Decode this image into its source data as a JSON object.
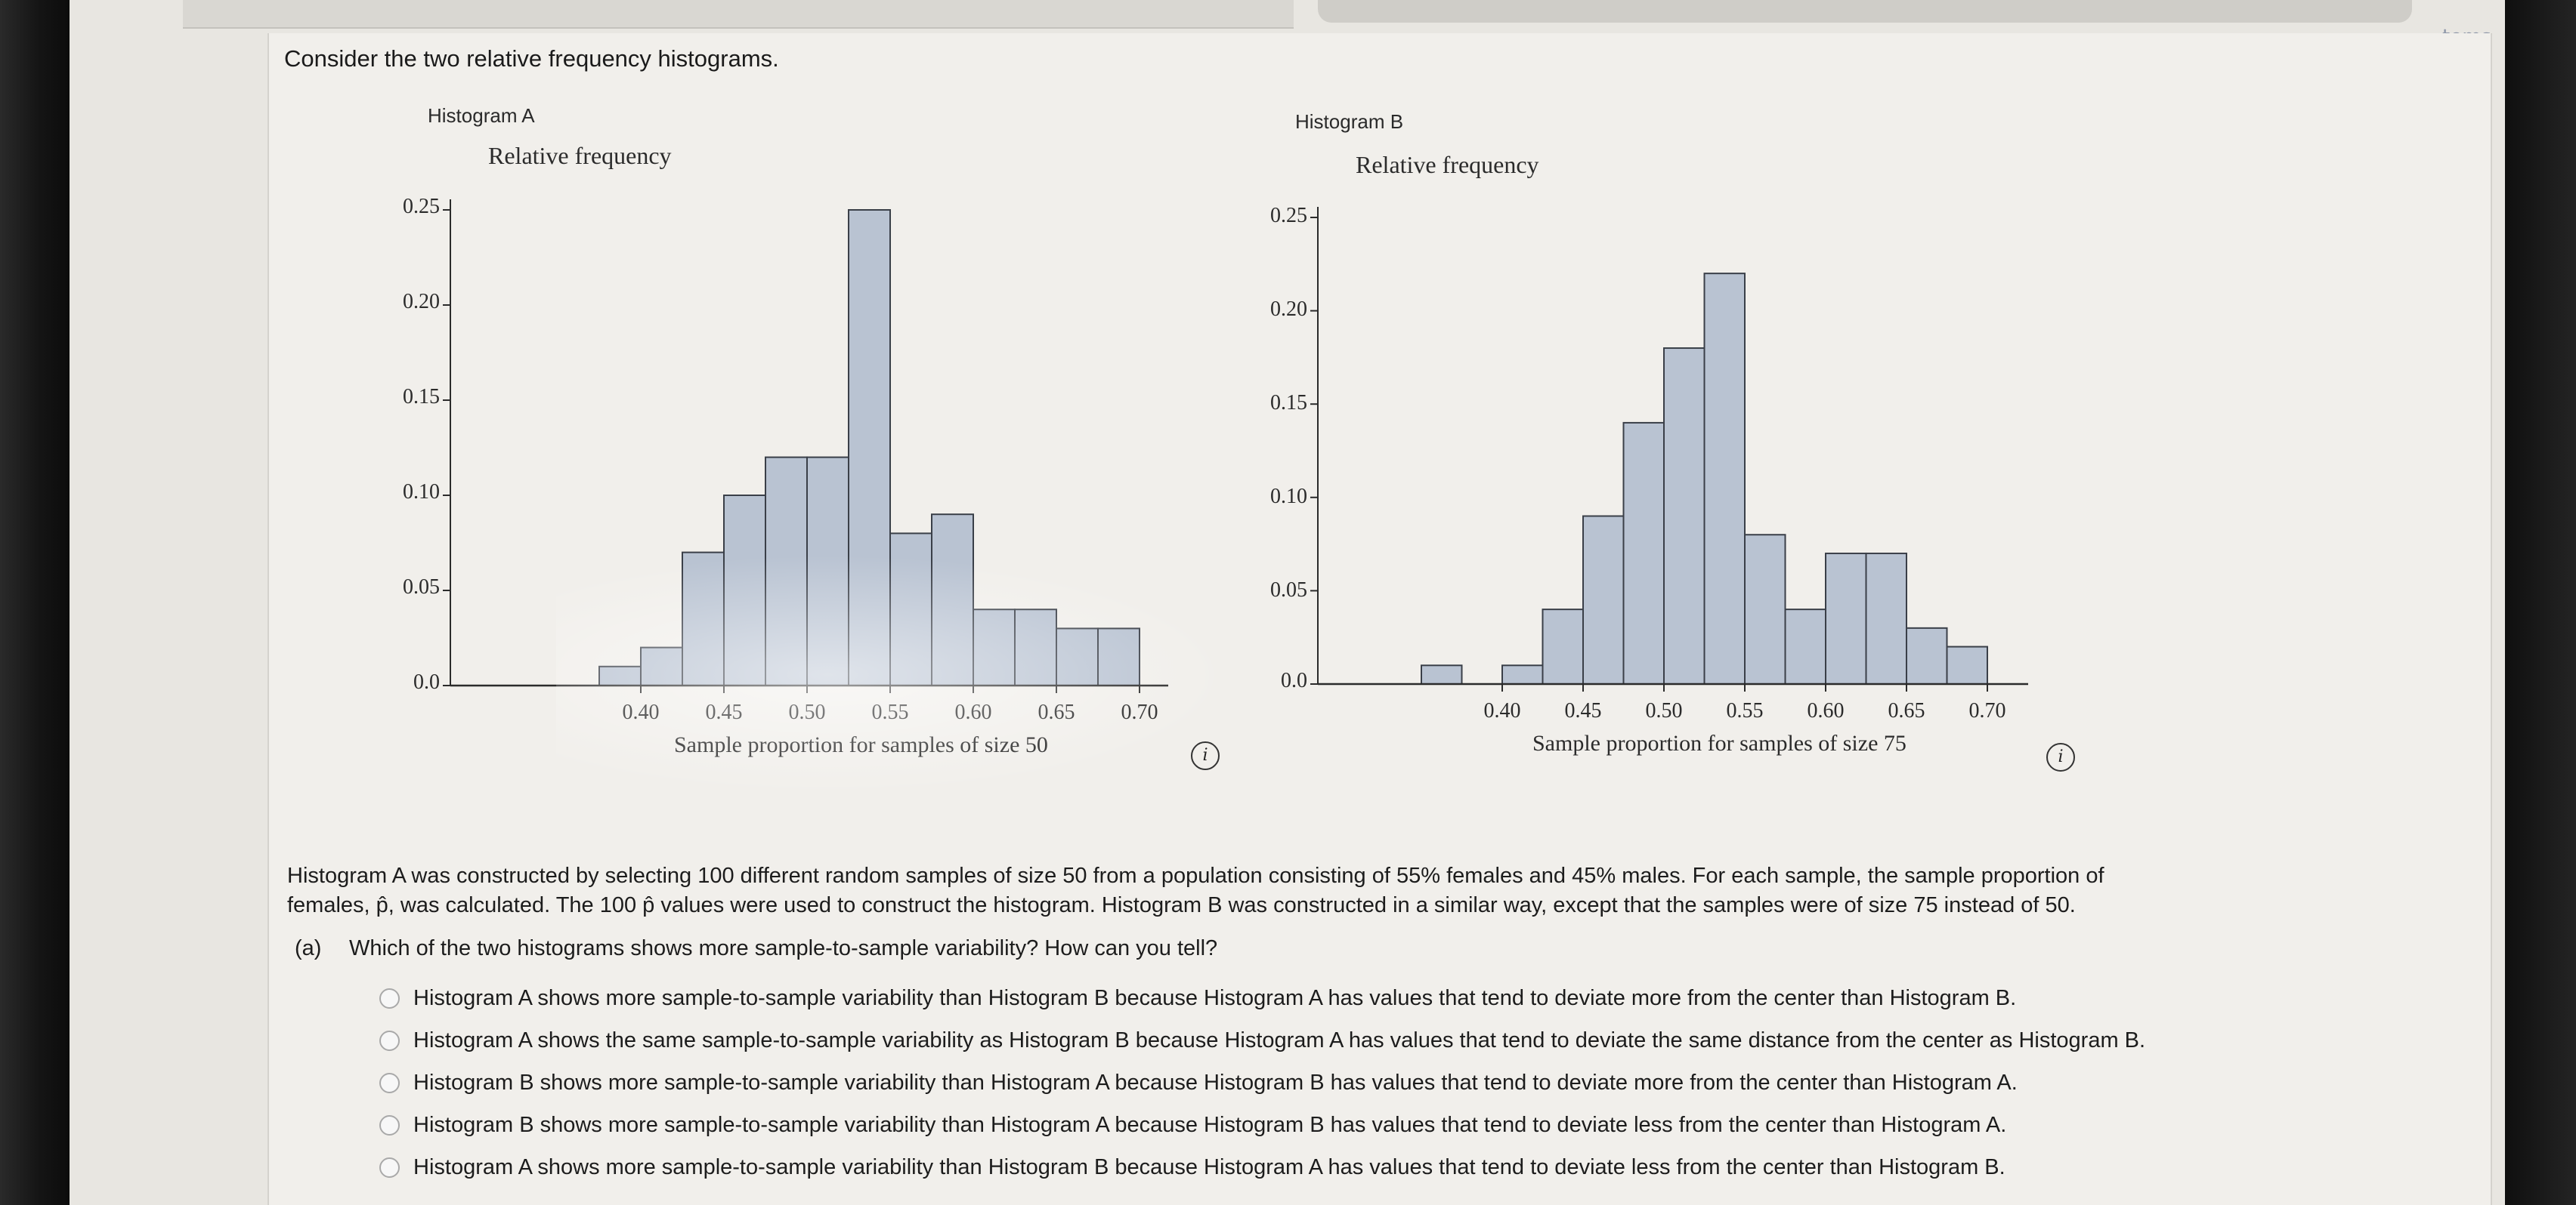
{
  "intro_text": "Consider the two relative frequency histograms.",
  "histograms": [
    {
      "panel_label": "Histogram A",
      "y_title": "Relative frequency",
      "x_title": "Sample proportion for samples of size 50",
      "y_ticks": [
        "0.25",
        "0.20",
        "0.15",
        "0.10",
        "0.05",
        "0.0"
      ],
      "x_ticks": [
        "0.40",
        "0.45",
        "0.50",
        "0.55",
        "0.60",
        "0.65",
        "0.70"
      ]
    },
    {
      "panel_label": "Histogram B",
      "y_title": "Relative frequency",
      "x_title": "Sample proportion for samples of size 75",
      "y_ticks": [
        "0.25",
        "0.20",
        "0.15",
        "0.10",
        "0.05",
        "0.0"
      ],
      "x_ticks": [
        "0.40",
        "0.45",
        "0.50",
        "0.55",
        "0.60",
        "0.65",
        "0.70"
      ]
    }
  ],
  "chart_data": [
    {
      "type": "bar",
      "title": "Histogram A",
      "xlabel": "Sample proportion for samples of size 50",
      "ylabel": "Relative frequency",
      "ylim": [
        0,
        0.25
      ],
      "bin_width": 0.025,
      "bin_starts": [
        0.375,
        0.4,
        0.425,
        0.45,
        0.475,
        0.5,
        0.525,
        0.55,
        0.575,
        0.6,
        0.625,
        0.65,
        0.675
      ],
      "values": [
        0.01,
        0.02,
        0.07,
        0.1,
        0.12,
        0.12,
        0.25,
        0.08,
        0.09,
        0.04,
        0.04,
        0.03,
        0.03
      ],
      "grid": false
    },
    {
      "type": "bar",
      "title": "Histogram B",
      "xlabel": "Sample proportion for samples of size 75",
      "ylabel": "Relative frequency",
      "ylim": [
        0,
        0.25
      ],
      "bin_width": 0.025,
      "bin_starts": [
        0.35,
        0.375,
        0.4,
        0.425,
        0.45,
        0.475,
        0.5,
        0.525,
        0.55,
        0.575,
        0.6,
        0.625,
        0.65,
        0.675,
        0.7
      ],
      "values": [
        0.01,
        0.0,
        0.01,
        0.04,
        0.09,
        0.14,
        0.18,
        0.22,
        0.08,
        0.04,
        0.07,
        0.07,
        0.03,
        0.02,
        0.0
      ],
      "grid": false
    }
  ],
  "info_icon_glyph": "i",
  "paragraph_line1": "Histogram A was constructed by selecting 100 different random samples of size 50 from a population consisting of 55% females and 45% males. For each sample, the sample proportion of",
  "paragraph_line2": "females, p̂, was calculated. The 100 p̂ values were used to construct the histogram. Histogram B was constructed in a similar way, except that the samples were of size 75 instead of 50.",
  "question": {
    "tag": "(a)",
    "text": "Which of the two histograms shows more sample-to-sample variability? How can you tell?"
  },
  "options": [
    "Histogram A shows more sample-to-sample variability than Histogram B because Histogram A has values that tend to deviate more from the center than Histogram B.",
    "Histogram A shows the same sample-to-sample variability as Histogram B because Histogram A has values that tend to deviate the same distance from the center as Histogram B.",
    "Histogram B shows more sample-to-sample variability than Histogram A because Histogram B has values that tend to deviate more from the center than Histogram A.",
    "Histogram B shows more sample-to-sample variability than Histogram A because Histogram B has values that tend to deviate less from the center than Histogram A.",
    "Histogram A shows more sample-to-sample variability than Histogram B because Histogram A has values that tend to deviate less from the center than Histogram B."
  ],
  "sidebar_fragment": "tems",
  "colors": {
    "bar_fill": "#b9c3d2",
    "bar_stroke": "#3a3f48",
    "axis": "#2b2b2b"
  }
}
